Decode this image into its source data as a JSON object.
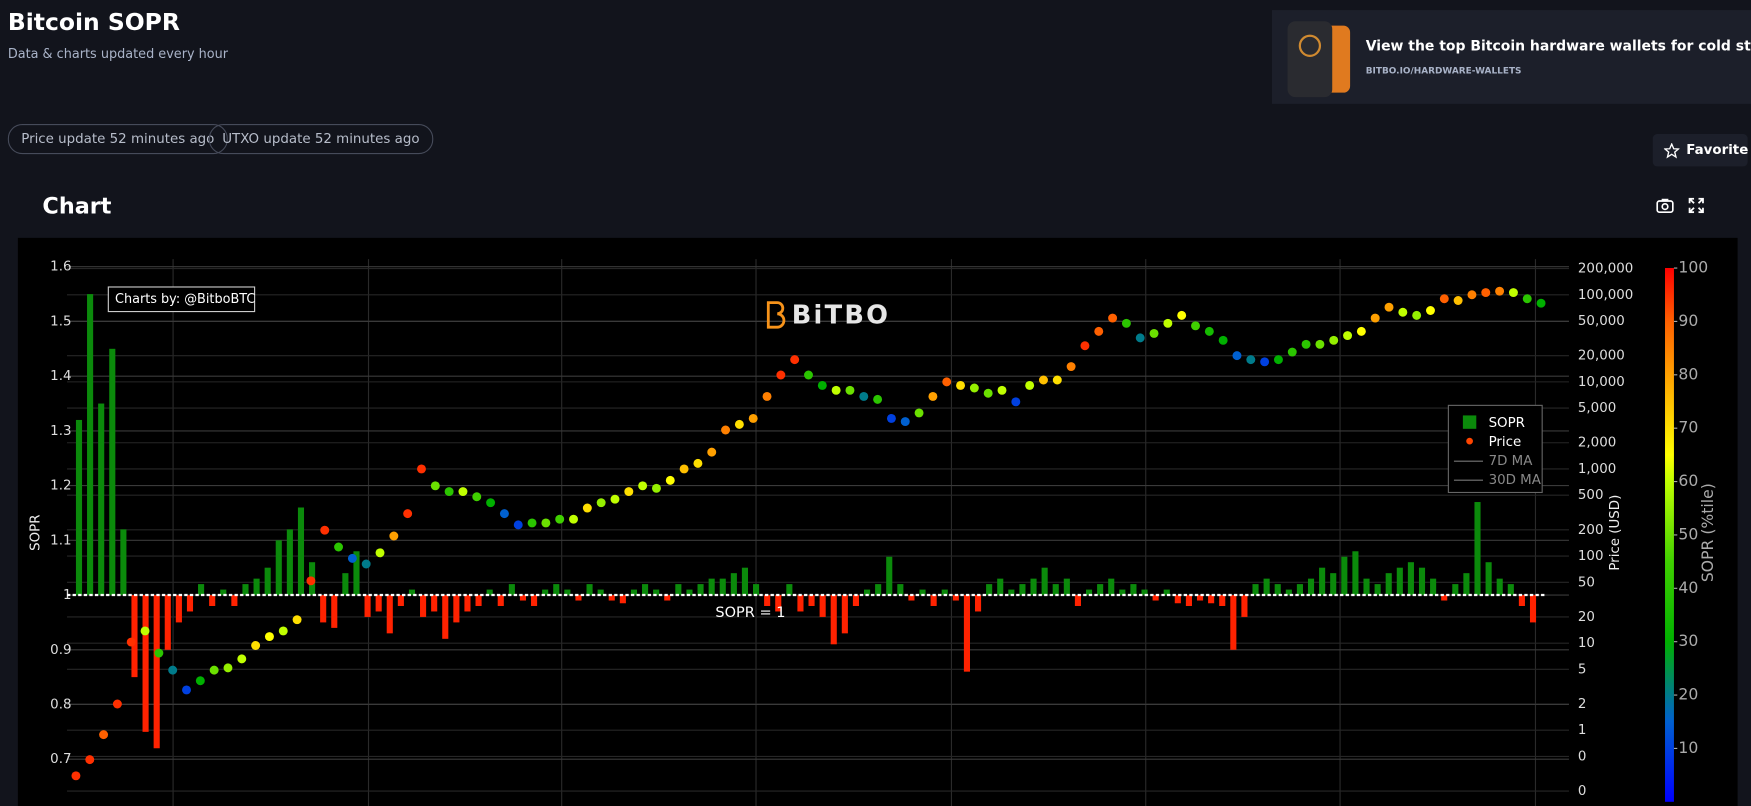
{
  "header": {
    "title": "Bitcoin SOPR",
    "subtitle": "Data & charts updated every hour"
  },
  "ad": {
    "text": "View the top Bitcoin hardware wallets for cold storage.",
    "url": "BITBO.IO/HARDWARE-WALLETS"
  },
  "badges": [
    "Price update 52 minutes ago",
    "UTXO update 52 minutes ago"
  ],
  "favorite": "Favorite",
  "section_title": "Chart",
  "chart_data": {
    "type": "bar",
    "watermark": "BiTBO",
    "credit": "Charts by: @BitboBTC",
    "ylabel": "SOPR",
    "y2label": "Price (USD)",
    "ylim": [
      0.614,
      1.614
    ],
    "yticks": [
      0.7,
      0.8,
      0.9,
      1,
      1.1,
      1.2,
      1.3,
      1.4,
      1.5,
      1.6
    ],
    "y2lim": [
      0.134,
      257000
    ],
    "y2log": true,
    "y2ticks": [
      {
        "value": 200000,
        "label": "200,000"
      },
      {
        "value": 100000,
        "label": "100,000"
      },
      {
        "value": 50000,
        "label": "50,000"
      },
      {
        "value": 20000,
        "label": "20,000"
      },
      {
        "value": 10000,
        "label": "10,000"
      },
      {
        "value": 5000,
        "label": "5,000"
      },
      {
        "value": 2000,
        "label": "2,000"
      },
      {
        "value": 1000,
        "label": "1,000"
      },
      500,
      200,
      100,
      50,
      20,
      10,
      5,
      2,
      1,
      {
        "value": 0.5,
        "label": "0"
      },
      {
        "value": 0.2,
        "label": "0"
      }
    ],
    "grid": true,
    "reference": {
      "value": 1,
      "label": "SOPR = 1"
    },
    "legend": "right",
    "series": [
      {
        "name": "SOPR",
        "type": "bar",
        "color": "#0b8a0b",
        "negative_color": "#ff2200",
        "values": [
          1.32,
          1.55,
          1.35,
          1.45,
          1.12,
          0.85,
          0.75,
          0.72,
          0.9,
          0.95,
          0.97,
          1.02,
          0.98,
          1.01,
          0.98,
          1.02,
          1.03,
          1.05,
          1.1,
          1.12,
          1.16,
          1.06,
          0.95,
          0.94,
          1.04,
          1.08,
          0.96,
          0.97,
          0.93,
          0.98,
          1.01,
          0.96,
          0.97,
          0.92,
          0.95,
          0.97,
          0.98,
          1.01,
          0.98,
          1.02,
          0.99,
          0.98,
          1.01,
          1.02,
          1.01,
          0.99,
          1.02,
          1.01,
          0.99,
          0.985,
          1.01,
          1.02,
          1.01,
          0.99,
          1.02,
          1.01,
          1.02,
          1.03,
          1.03,
          1.04,
          1.05,
          1.02,
          0.98,
          0.97,
          1.02,
          0.97,
          0.98,
          0.96,
          0.91,
          0.93,
          0.98,
          1.01,
          1.02,
          1.07,
          1.02,
          0.99,
          1.01,
          0.98,
          1.01,
          0.99,
          0.86,
          0.97,
          1.02,
          1.03,
          1.01,
          1.02,
          1.03,
          1.05,
          1.02,
          1.03,
          0.98,
          1.01,
          1.02,
          1.03,
          1.01,
          1.02,
          1.01,
          0.99,
          1.01,
          0.985,
          0.98,
          0.99,
          0.985,
          0.98,
          0.9,
          0.96,
          1.02,
          1.03,
          1.02,
          1.01,
          1.02,
          1.03,
          1.05,
          1.04,
          1.07,
          1.08,
          1.03,
          1.02,
          1.04,
          1.05,
          1.06,
          1.05,
          1.03,
          0.99,
          1.02,
          1.04,
          1.17,
          1.06,
          1.03,
          1.02,
          0.98,
          0.95
        ]
      },
      {
        "name": "Price",
        "type": "scatter",
        "axis": "y2",
        "color": "#ff4500",
        "values": [
          0.3,
          0.46,
          0.89,
          2.0,
          10.3,
          13.8,
          7.7,
          4.9,
          2.9,
          3.7,
          4.9,
          5.2,
          6.6,
          9.4,
          11.9,
          13.8,
          18.6,
          52,
          198,
          127,
          94,
          81,
          109,
          170,
          307,
          1000,
          640,
          550,
          550,
          480,
          410,
          307,
          228,
          240,
          240,
          265,
          265,
          356,
          410,
          450,
          550,
          640,
          600,
          740,
          1000,
          1160,
          1560,
          2800,
          3250,
          3800,
          6800,
          12000,
          18000,
          12000,
          9100,
          8000,
          8000,
          6800,
          6300,
          3800,
          3500,
          4400,
          6800,
          10000,
          9100,
          8500,
          7400,
          8000,
          5900,
          9100,
          10500,
          10500,
          15000,
          26000,
          38000,
          54000,
          47000,
          32000,
          36000,
          47000,
          58000,
          44000,
          38000,
          30000,
          20000,
          18000,
          17000,
          18000,
          22000,
          27000,
          27000,
          30000,
          34000,
          38000,
          54000,
          72000,
          63000,
          58000,
          66000,
          90000,
          86000,
          100000,
          106000,
          110000,
          106000,
          90000,
          80000
        ],
        "color_values": [
          95,
          95,
          90,
          95,
          95,
          60,
          40,
          20,
          10,
          30,
          50,
          55,
          60,
          70,
          65,
          60,
          70,
          95,
          95,
          40,
          15,
          20,
          60,
          80,
          95,
          95,
          50,
          40,
          60,
          45,
          30,
          15,
          10,
          40,
          50,
          45,
          60,
          70,
          55,
          60,
          70,
          60,
          55,
          65,
          75,
          70,
          80,
          85,
          70,
          80,
          85,
          95,
          95,
          40,
          30,
          60,
          50,
          20,
          40,
          10,
          15,
          50,
          80,
          90,
          70,
          55,
          50,
          60,
          10,
          60,
          75,
          70,
          85,
          95,
          90,
          90,
          40,
          20,
          50,
          60,
          65,
          45,
          35,
          30,
          15,
          20,
          10,
          30,
          40,
          40,
          50,
          55,
          60,
          65,
          80,
          80,
          60,
          55,
          65,
          90,
          75,
          85,
          90,
          85,
          60,
          40,
          30
        ]
      }
    ],
    "legend_items": [
      "7D MA",
      "30D MA"
    ],
    "colorbar": {
      "label": "SOPR (%tile)",
      "lim": [
        0,
        100
      ],
      "ticks": [
        10,
        20,
        30,
        40,
        50,
        60,
        70,
        80,
        90,
        100
      ],
      "colorscale": [
        [
          0,
          "#0000ff"
        ],
        [
          0.15,
          "#0060d0"
        ],
        [
          0.3,
          "#00b000"
        ],
        [
          0.45,
          "#40d000"
        ],
        [
          0.6,
          "#c0ff00"
        ],
        [
          0.65,
          "#ffff00"
        ],
        [
          0.8,
          "#ffa000"
        ],
        [
          0.9,
          "#ff6000"
        ],
        [
          1,
          "#ff0000"
        ]
      ]
    }
  }
}
